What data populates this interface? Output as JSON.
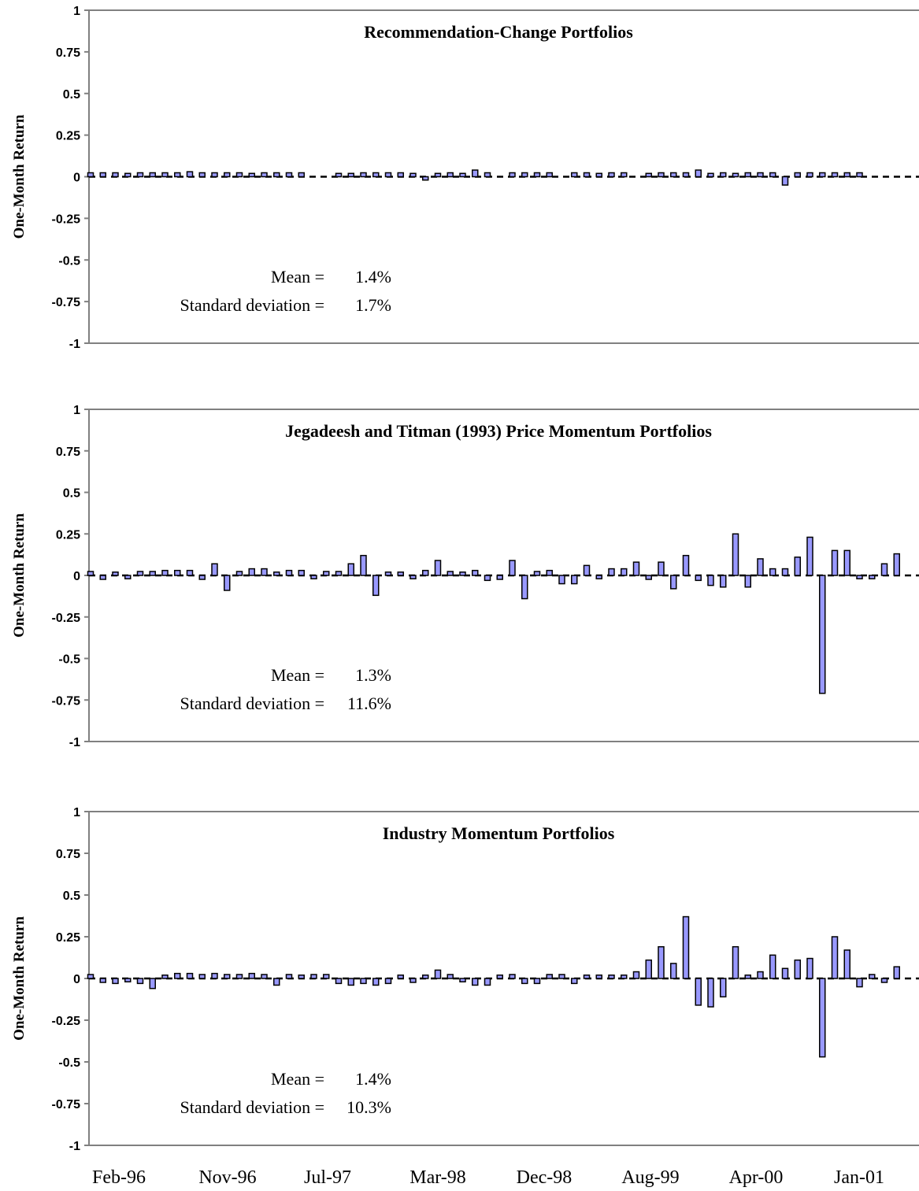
{
  "colors": {
    "bar_fill": "#9999ff",
    "bar_stroke": "#000000",
    "axis": "#808080",
    "baseline": "#000000"
  },
  "x_tick_labels": [
    "Feb-96",
    "Nov-96",
    "Jul-97",
    "Mar-98",
    "Dec-98",
    "Aug-99",
    "Apr-00",
    "Jan-01"
  ],
  "chart_data": [
    {
      "type": "bar",
      "title": "Recommendation-Change Portfolios",
      "ylabel": "One-Month Return",
      "ylim": [
        -1,
        1
      ],
      "yticks": [
        "1",
        "0.75",
        "0.5",
        "0.25",
        "0",
        "-0.25",
        "-0.5",
        "-0.75",
        "-1"
      ],
      "grid": false,
      "stats": {
        "mean_label": "Mean =",
        "mean_value": "1.4%",
        "sd_label": "Standard deviation =",
        "sd_value": "1.7%"
      },
      "x_start": "Feb-96",
      "values": [
        0.0,
        0.01,
        0.01,
        0.02,
        0.0,
        0.01,
        0.01,
        0.01,
        0.03,
        0.0,
        0.0,
        0.01,
        0.01,
        0.02,
        0.01,
        0.01,
        0.0,
        0.0,
        null,
        null,
        0.02,
        0.02,
        0.0,
        0.0,
        0.0,
        0.01,
        0.02,
        -0.02,
        0.02,
        0.0,
        0.02,
        0.04,
        0.01,
        null,
        0.01,
        0.0,
        0.0,
        0.01,
        null,
        0.0,
        0.0,
        0.02,
        0.0,
        0.0,
        null,
        0.02,
        0.0,
        0.0,
        0.01,
        0.04,
        0.02,
        0.01,
        0.02,
        0.0,
        0.0,
        0.01,
        -0.05,
        0.01,
        0.01,
        0.01,
        0.01,
        0.01,
        0.0
      ]
    },
    {
      "type": "bar",
      "title": "Jegadeesh and Titman (1993)  Price Momentum Portfolios",
      "ylabel": "One-Month Return",
      "ylim": [
        -1,
        1
      ],
      "yticks": [
        "1",
        "0.75",
        "0.5",
        "0.25",
        "0",
        "-0.25",
        "-0.5",
        "-0.75",
        "-1"
      ],
      "grid": false,
      "stats": {
        "mean_label": "Mean =",
        "mean_value": "1.3%",
        "sd_label": "Standard deviation =",
        "sd_value": "11.6%"
      },
      "x_start": "Feb-96",
      "values": [
        0.0,
        -0.01,
        0.02,
        -0.02,
        0.01,
        0.0,
        0.03,
        0.03,
        0.03,
        -0.01,
        0.07,
        -0.09,
        0.0,
        0.04,
        0.04,
        0.02,
        0.03,
        0.03,
        -0.02,
        0.0,
        0.0,
        0.07,
        0.12,
        -0.12,
        0.02,
        0.02,
        -0.02,
        0.03,
        0.09,
        0.0,
        0.02,
        0.03,
        -0.03,
        -0.01,
        0.09,
        -0.14,
        0.0,
        0.03,
        -0.05,
        -0.05,
        0.06,
        -0.02,
        0.04,
        0.04,
        0.08,
        -0.01,
        0.08,
        -0.08,
        0.12,
        -0.03,
        -0.06,
        -0.07,
        0.25,
        -0.07,
        0.1,
        0.04,
        0.04,
        0.11,
        0.23,
        -0.71,
        0.15,
        0.15,
        -0.02,
        -0.02,
        0.07,
        0.13
      ]
    },
    {
      "type": "bar",
      "title": "Industry Momentum Portfolios",
      "ylabel": "One-Month Return",
      "ylim": [
        -1,
        1
      ],
      "yticks": [
        "1",
        "0.75",
        "0.5",
        "0.25",
        "0",
        "-0.25",
        "-0.5",
        "-0.75",
        "-1"
      ],
      "grid": false,
      "stats": {
        "mean_label": "Mean =",
        "mean_value": "1.4%",
        "sd_label": "Standard deviation =",
        "sd_value": "10.3%"
      },
      "x_start": "Feb-96",
      "values": [
        0.0,
        -0.01,
        -0.03,
        -0.02,
        -0.03,
        -0.06,
        0.02,
        0.03,
        0.03,
        0.01,
        0.03,
        0.0,
        0.01,
        0.03,
        0.0,
        -0.04,
        0.0,
        0.02,
        0.0,
        0.0,
        -0.03,
        -0.04,
        -0.03,
        -0.04,
        -0.03,
        0.02,
        -0.01,
        0.02,
        0.05,
        0.01,
        -0.02,
        -0.04,
        -0.04,
        0.02,
        0.0,
        -0.03,
        -0.03,
        0.01,
        0.0,
        -0.03,
        0.02,
        0.02,
        0.02,
        0.02,
        0.04,
        0.11,
        0.19,
        0.09,
        0.37,
        -0.16,
        -0.17,
        -0.11,
        0.19,
        0.02,
        0.04,
        0.14,
        0.06,
        0.11,
        0.12,
        -0.47,
        0.25,
        0.17,
        -0.05,
        0.0,
        -0.01,
        0.07
      ]
    }
  ]
}
